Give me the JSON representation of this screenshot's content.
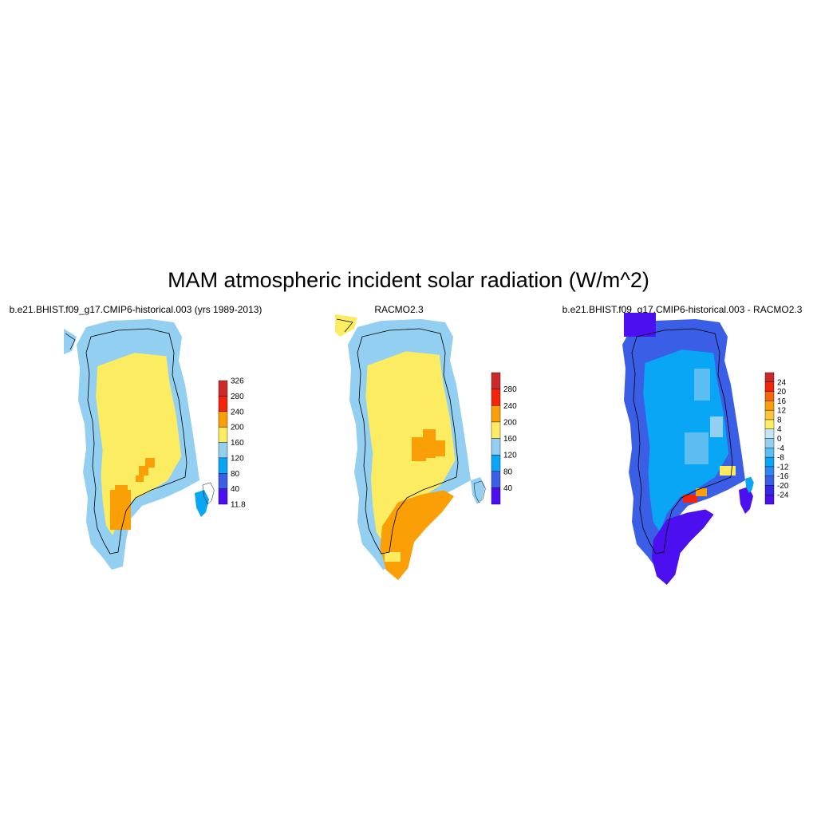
{
  "title": "MAM atmospheric incident solar radiation (W/m^2)",
  "panels": [
    {
      "title": "b.e21.BHIST.f09_g17.CMIP6-historical.003 (yrs 1989-2013)",
      "colorbar": {
        "labels": [
          "11.8",
          "40",
          "80",
          "120",
          "160",
          "200",
          "240",
          "280",
          "326"
        ],
        "colors": [
          "#4b0ff0",
          "#3b5ee6",
          "#08a6f5",
          "#93cff0",
          "#fcec62",
          "#fa9f05",
          "#f4230b",
          "#cc2a2a"
        ]
      }
    },
    {
      "title": "RACMO2.3",
      "colorbar": {
        "labels": [
          "40",
          "80",
          "120",
          "160",
          "200",
          "240",
          "280"
        ],
        "colors": [
          "#4b0ff0",
          "#3b5ee6",
          "#08a6f5",
          "#93cff0",
          "#fcec62",
          "#fa9f05",
          "#f4230b",
          "#cc2a2a"
        ]
      }
    },
    {
      "title": "b.e21.BHIST.f09_g17.CMIP6-historical.003 - RACMO2.3",
      "colorbar": {
        "labels": [
          "-24",
          "-20",
          "-16",
          "-12",
          "-8",
          "-4",
          "0",
          "4",
          "8",
          "12",
          "16",
          "20",
          "24"
        ],
        "colors": [
          "#4b0ff0",
          "#3328e4",
          "#3b5ee6",
          "#2f86f0",
          "#08a6f5",
          "#5bbdf2",
          "#93cff0",
          "#c5e5f5",
          "#fcec62",
          "#fbc43a",
          "#fa9f05",
          "#f56a08",
          "#f4230b",
          "#cc2a2a"
        ]
      }
    }
  ],
  "map_colors": {
    "ocean_edge": "#93cff0",
    "interior_yellow": "#fcec62",
    "orange": "#fa9f05",
    "diff_blue": "#08a6f5",
    "diff_light": "#5bbdf2",
    "diff_dark": "#3b5ee6",
    "diff_violet": "#4b0ff0"
  }
}
